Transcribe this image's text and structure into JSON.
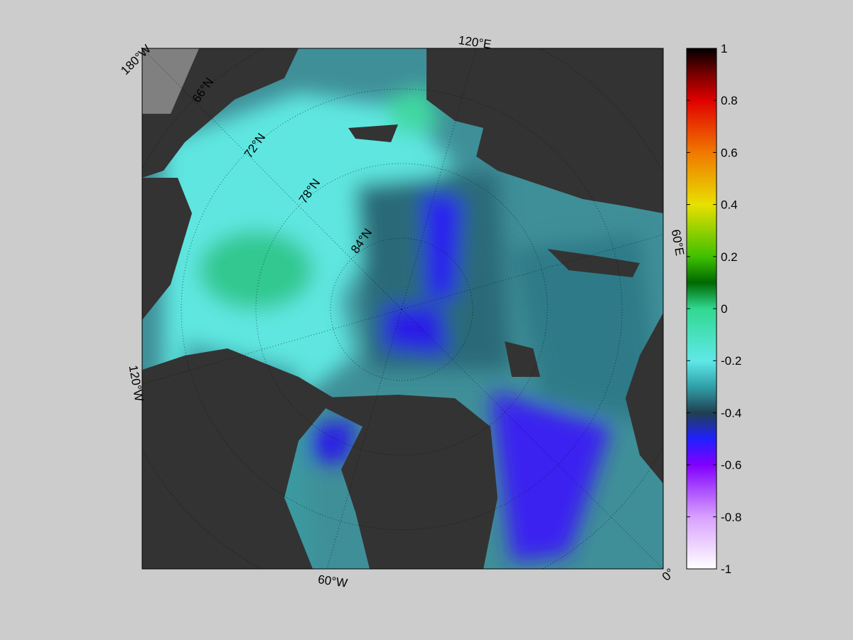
{
  "map": {
    "longitude_labels": [
      "180°W",
      "120°E",
      "60°E",
      "0°",
      "60°W",
      "120°W"
    ],
    "latitude_labels": [
      "66°N",
      "72°N",
      "78°N",
      "84°N"
    ],
    "colorbar": {
      "lim": [
        -1,
        1
      ],
      "ticks": [
        1,
        0.8,
        0.6,
        0.4,
        0.2,
        0,
        -0.2,
        -0.4,
        -0.6,
        -0.8,
        -1
      ]
    }
  }
}
